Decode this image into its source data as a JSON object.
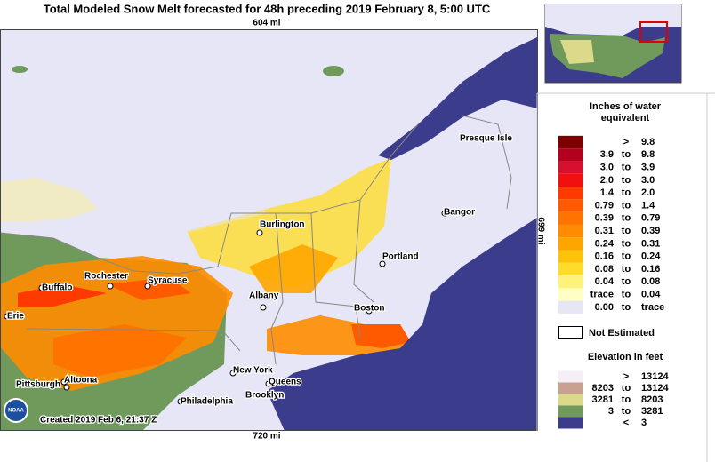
{
  "header": {
    "title": "Total Modeled Snow Melt forecasted for 48h preceding 2019 February 8, 5:00 UTC"
  },
  "map": {
    "top_scale": "604 mi",
    "bottom_scale": "720 mi",
    "right_scale": "699 mi",
    "created": "Created 2019 Feb 6, 21:37 Z",
    "logo": "NOAA",
    "cities": [
      {
        "name": "Presque Isle"
      },
      {
        "name": "Bangor"
      },
      {
        "name": "Burlington"
      },
      {
        "name": "Portland"
      },
      {
        "name": "Rochester"
      },
      {
        "name": "Syracuse"
      },
      {
        "name": "Buffalo"
      },
      {
        "name": "Albany"
      },
      {
        "name": "Boston"
      },
      {
        "name": "Erie"
      },
      {
        "name": "New York"
      },
      {
        "name": "Queens"
      },
      {
        "name": "Pittsburgh"
      },
      {
        "name": "Altoona"
      },
      {
        "name": "Brooklyn"
      },
      {
        "name": "Philadelphia"
      }
    ]
  },
  "legend": {
    "title": "Inches of water equivalent",
    "rows": [
      {
        "color": "#7d0000",
        "sep": ">",
        "high": "9.8"
      },
      {
        "color": "#b3001e",
        "low": "3.9",
        "sep": "to",
        "high": "9.8"
      },
      {
        "color": "#d6102e",
        "low": "3.0",
        "sep": "to",
        "high": "3.9"
      },
      {
        "color": "#f01010",
        "low": "2.0",
        "sep": "to",
        "high": "3.0"
      },
      {
        "color": "#ff3a00",
        "low": "1.4",
        "sep": "to",
        "high": "2.0"
      },
      {
        "color": "#ff5a00",
        "low": "0.79",
        "sep": "to",
        "high": "1.4"
      },
      {
        "color": "#ff7400",
        "low": "0.39",
        "sep": "to",
        "high": "0.79"
      },
      {
        "color": "#ff8c00",
        "low": "0.31",
        "sep": "to",
        "high": "0.39"
      },
      {
        "color": "#ffa500",
        "low": "0.24",
        "sep": "to",
        "high": "0.31"
      },
      {
        "color": "#ffc20a",
        "low": "0.16",
        "sep": "to",
        "high": "0.24"
      },
      {
        "color": "#ffdc2a",
        "low": "0.08",
        "sep": "to",
        "high": "0.16"
      },
      {
        "color": "#fff27a",
        "low": "0.04",
        "sep": "to",
        "high": "0.08"
      },
      {
        "color": "#ffffc4",
        "low": "trace",
        "sep": "to",
        "high": "0.04"
      },
      {
        "color": "#e6e6f6",
        "low": "0.00",
        "sep": "to",
        "high": "trace"
      }
    ],
    "not_estimated": "Not Estimated",
    "elevation_title": "Elevation in feet",
    "elevation_rows": [
      {
        "color": "#f6eef6",
        "sep": ">",
        "high": "13124"
      },
      {
        "color": "#c9a190",
        "low": "8203",
        "sep": "to",
        "high": "13124"
      },
      {
        "color": "#dcd98a",
        "low": "3281",
        "sep": "to",
        "high": "8203"
      },
      {
        "color": "#6f9a5c",
        "low": "3",
        "sep": "to",
        "high": "3281"
      },
      {
        "color": "#3c3c8c",
        "sep": "<",
        "high": "3"
      }
    ]
  }
}
